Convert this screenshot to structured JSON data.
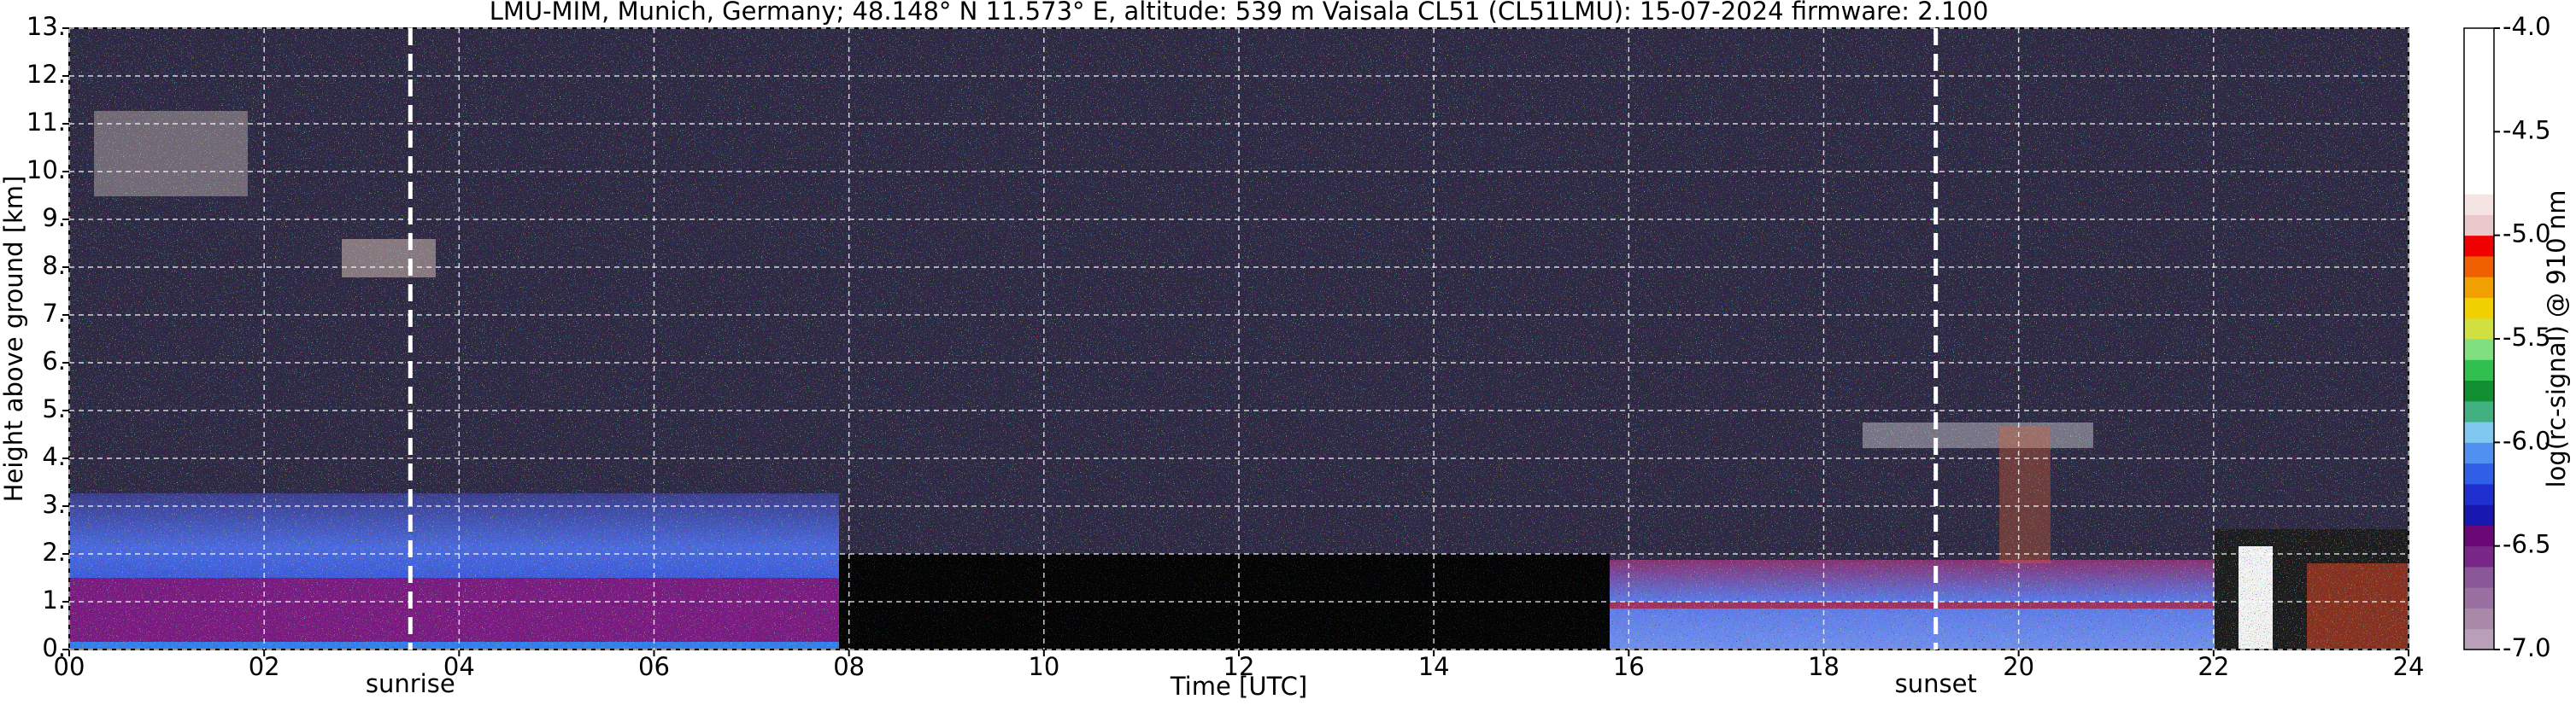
{
  "chart_data": {
    "type": "heatmap",
    "title": "LMU-MIM, Munich, Germany; 48.148° N 11.573° E, altitude: 539 m    Vaisala CL51 (CL51LMU): 15-07-2024    firmware: 2.100",
    "xlabel": "Time [UTC]",
    "ylabel": "Height above ground [km]",
    "xlim": [
      0,
      24
    ],
    "ylim": [
      0,
      13
    ],
    "xticks": [
      {
        "value": 0,
        "label": "00"
      },
      {
        "value": 2,
        "label": "02"
      },
      {
        "value": 4,
        "label": "04"
      },
      {
        "value": 6,
        "label": "06"
      },
      {
        "value": 8,
        "label": "08"
      },
      10,
      12,
      14,
      16,
      18,
      20,
      22,
      24
    ],
    "yticks": [
      {
        "value": 0,
        "label": "0."
      },
      {
        "value": 1,
        "label": "1."
      },
      {
        "value": 2,
        "label": "2."
      },
      {
        "value": 3,
        "label": "3."
      },
      {
        "value": 4,
        "label": "4."
      },
      {
        "value": 5,
        "label": "5."
      },
      {
        "value": 6,
        "label": "6."
      },
      {
        "value": 7,
        "label": "7."
      },
      {
        "value": 8,
        "label": "8."
      },
      {
        "value": 9,
        "label": "9."
      },
      {
        "value": 10,
        "label": "10."
      },
      {
        "value": 11,
        "label": "11."
      },
      {
        "value": 12,
        "label": "12."
      },
      {
        "value": 13,
        "label": "13."
      }
    ],
    "grid": true,
    "annotations": [
      {
        "text": "sunrise",
        "x": 3.5
      },
      {
        "text": "sunset",
        "x": 19.15
      }
    ],
    "colorbar": {
      "label": "log(rc-signal) @ 910 nm",
      "clim": [
        -7,
        -4
      ],
      "ticks": [
        {
          "value": -4,
          "label": "-4.0"
        },
        -4.5,
        {
          "value": -5,
          "label": "-5.0"
        },
        -5.5,
        {
          "value": -6,
          "label": "-6.0"
        },
        -6.5,
        {
          "value": -7,
          "label": "-7.0"
        }
      ],
      "colors": [
        "#b8a0b8",
        "#a88aa8",
        "#9a70a0",
        "#8a5898",
        "#7a2888",
        "#6a0878",
        "#1818b0",
        "#2030d0",
        "#3060e8",
        "#5090f0",
        "#80c8f0",
        "#40b080",
        "#109030",
        "#30c050",
        "#80e080",
        "#d0e040",
        "#f0d000",
        "#f0a000",
        "#f06000",
        "#f00000",
        "#e8c8c8",
        "#f4e4e4",
        "#ffffff",
        "#ffffff",
        "#ffffff",
        "#ffffff",
        "#ffffff",
        "#ffffff",
        "#ffffff",
        "#ffffff"
      ]
    }
  }
}
